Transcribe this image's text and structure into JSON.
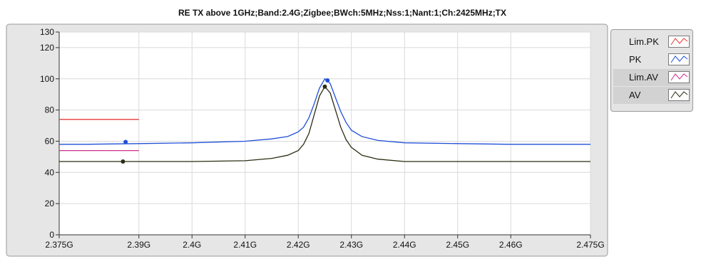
{
  "chart_data": {
    "type": "line",
    "title": "RE TX above 1GHz;Band:2.4G;Zigbee;BWch:5MHz;Nss:1;Nant:1;Ch:2425MHz;TX",
    "xlabel": "",
    "ylabel": "",
    "xlim": [
      2.375,
      2.475
    ],
    "ylim": [
      0,
      130
    ],
    "x_ticks": [
      2.375,
      2.39,
      2.4,
      2.41,
      2.42,
      2.43,
      2.44,
      2.45,
      2.46,
      2.475
    ],
    "x_tick_labels": [
      "2.375G",
      "2.39G",
      "2.4G",
      "2.41G",
      "2.42G",
      "2.43G",
      "2.44G",
      "2.45G",
      "2.46G",
      "2.475G"
    ],
    "y_ticks": [
      0,
      20,
      40,
      60,
      80,
      100,
      120,
      130
    ],
    "y_tick_labels": [
      "0",
      "20",
      "40",
      "60",
      "80",
      "100",
      "120",
      "130"
    ],
    "grid": true,
    "legend_position": "right",
    "series": [
      {
        "name": "Lim.PK",
        "color": "#e8383a",
        "x": [
          2.375,
          2.39
        ],
        "values": [
          74,
          74
        ]
      },
      {
        "name": "PK",
        "color": "#1f4fd8",
        "x": [
          2.375,
          2.38,
          2.39,
          2.4,
          2.41,
          2.415,
          2.418,
          2.42,
          2.421,
          2.422,
          2.423,
          2.424,
          2.425,
          2.426,
          2.427,
          2.428,
          2.429,
          2.43,
          2.432,
          2.435,
          2.44,
          2.45,
          2.46,
          2.475
        ],
        "values": [
          58,
          58,
          58.5,
          59,
          60,
          61.5,
          63,
          66,
          69,
          75,
          84,
          94,
          100,
          97,
          88,
          79,
          72,
          67,
          63,
          60.5,
          59,
          58.5,
          58,
          58
        ],
        "markers": [
          {
            "x": 2.3875,
            "y": 59.5
          },
          {
            "x": 2.4255,
            "y": 99
          }
        ]
      },
      {
        "name": "Lim.AV",
        "color": "#d0308c",
        "x": [
          2.375,
          2.39
        ],
        "values": [
          54,
          54
        ]
      },
      {
        "name": "AV",
        "color": "#2c2c12",
        "x": [
          2.375,
          2.39,
          2.4,
          2.41,
          2.415,
          2.418,
          2.42,
          2.421,
          2.422,
          2.423,
          2.424,
          2.425,
          2.426,
          2.427,
          2.428,
          2.429,
          2.43,
          2.432,
          2.435,
          2.44,
          2.45,
          2.46,
          2.475
        ],
        "values": [
          47,
          47,
          47,
          47.5,
          49,
          51,
          54,
          58,
          65,
          77,
          89,
          95,
          91,
          80,
          69,
          61,
          56,
          51,
          48.5,
          47,
          47,
          47,
          47
        ],
        "markers": [
          {
            "x": 2.387,
            "y": 47
          },
          {
            "x": 2.425,
            "y": 95
          }
        ]
      }
    ]
  }
}
